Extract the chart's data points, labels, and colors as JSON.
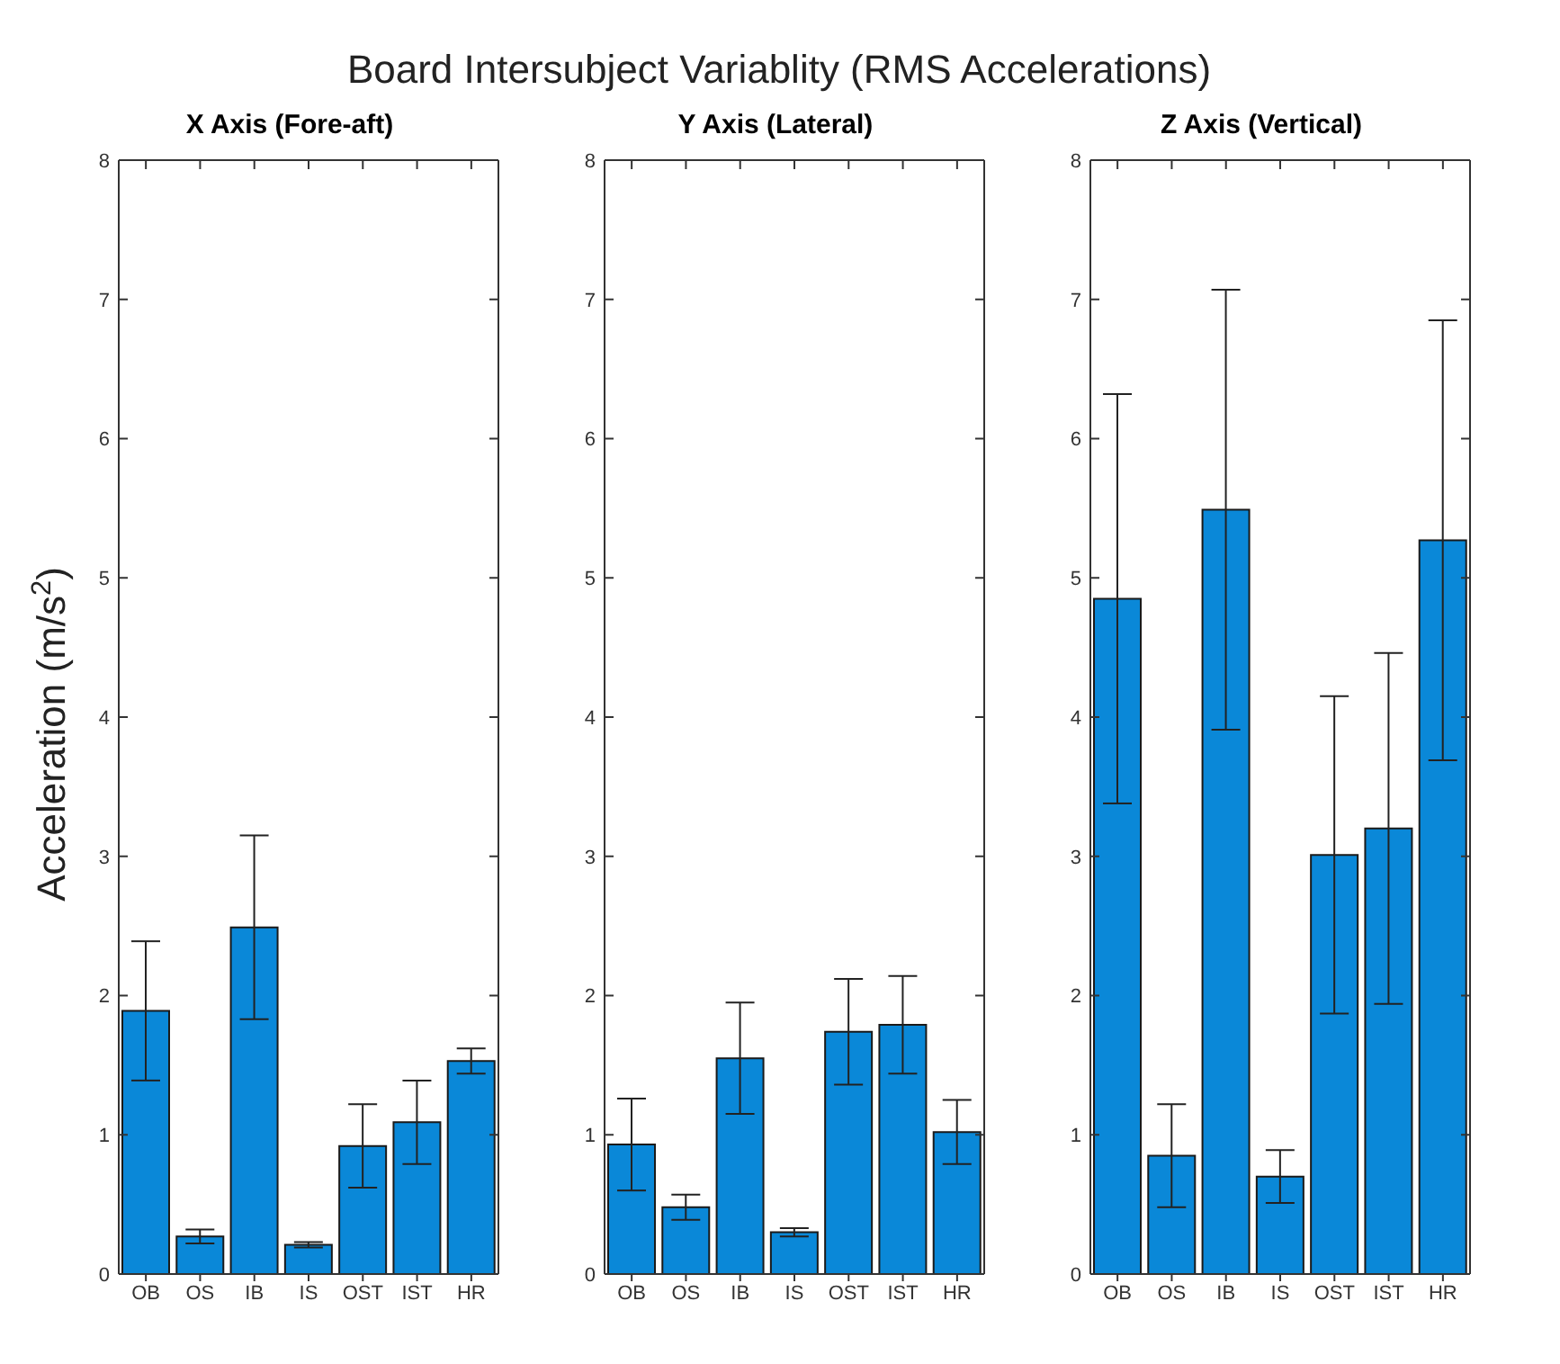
{
  "chart_data": [
    {
      "type": "bar",
      "title": "X Axis (Fore-aft)",
      "ylabel": "Acceleration (m/s$^{2}$)",
      "annotations": [
        "Board Intersubject Variablity (RMS Accelerations)"
      ],
      "categories": [
        "OB",
        "OS",
        "IB",
        "IS",
        "OST",
        "IST",
        "HR"
      ],
      "values": [
        1.89,
        0.27,
        2.49,
        0.21,
        0.92,
        1.09,
        1.53
      ],
      "errors": [
        0.5,
        0.05,
        0.66,
        0.02,
        0.3,
        0.3,
        0.09
      ],
      "color": "#0a88d8",
      "ylim": [
        0,
        8
      ],
      "yticks": [
        0,
        1,
        2,
        3,
        4,
        5,
        6,
        7,
        8
      ],
      "grid": false,
      "legend": false
    },
    {
      "type": "bar",
      "title": "Y Axis (Lateral)",
      "categories": [
        "OB",
        "OS",
        "IB",
        "IS",
        "OST",
        "IST",
        "HR"
      ],
      "values": [
        0.93,
        0.48,
        1.55,
        0.3,
        1.74,
        1.79,
        1.02
      ],
      "errors": [
        0.33,
        0.09,
        0.4,
        0.03,
        0.38,
        0.35,
        0.23
      ],
      "color": "#0a88d8",
      "ylim": [
        0,
        8
      ],
      "yticks": [
        0,
        1,
        2,
        3,
        4,
        5,
        6,
        7,
        8
      ],
      "grid": false,
      "legend": false
    },
    {
      "type": "bar",
      "title": "Z Axis (Vertical)",
      "categories": [
        "OB",
        "OS",
        "IB",
        "IS",
        "OST",
        "IST",
        "HR"
      ],
      "values": [
        4.85,
        0.85,
        5.49,
        0.7,
        3.01,
        3.2,
        5.27
      ],
      "errors": [
        1.47,
        0.37,
        1.58,
        0.19,
        1.14,
        1.26,
        1.58
      ],
      "color": "#0a88d8",
      "ylim": [
        0,
        8
      ],
      "yticks": [
        0,
        1,
        2,
        3,
        4,
        5,
        6,
        7,
        8
      ],
      "grid": false,
      "legend": false
    }
  ]
}
